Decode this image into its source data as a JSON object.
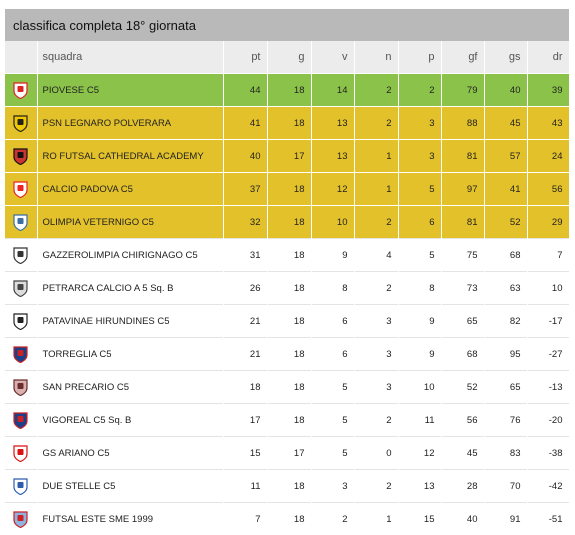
{
  "header": {
    "title": "classifica completa 18° giornata"
  },
  "columns": {
    "squadra": "squadra",
    "pt": "pt",
    "g": "g",
    "v": "v",
    "n": "n",
    "p": "p",
    "gf": "gf",
    "gs": "gs",
    "dr": "dr"
  },
  "rows": [
    {
      "team": "PIOVESE C5",
      "pt": "44",
      "g": "18",
      "v": "14",
      "n": "2",
      "p": "2",
      "gf": "79",
      "gs": "40",
      "dr": "39",
      "highlight": "green",
      "logo_icon": "piovese-crest-icon",
      "logo_colors": [
        "#d22",
        "#ffffff"
      ]
    },
    {
      "team": "PSN LEGNARO POLVERARA",
      "pt": "41",
      "g": "18",
      "v": "13",
      "n": "2",
      "p": "3",
      "gf": "88",
      "gs": "45",
      "dr": "43",
      "highlight": "yellow",
      "logo_icon": "psn-legnaro-crest-icon",
      "logo_colors": [
        "#222",
        "#f0c800"
      ]
    },
    {
      "team": "RO FUTSAL CATHEDRAL ACADEMY",
      "pt": "40",
      "g": "17",
      "v": "13",
      "n": "1",
      "p": "3",
      "gf": "81",
      "gs": "57",
      "dr": "24",
      "highlight": "yellow",
      "logo_icon": "ro-futsal-crest-icon",
      "logo_colors": [
        "#111",
        "#c33"
      ]
    },
    {
      "team": "CALCIO PADOVA C5",
      "pt": "37",
      "g": "18",
      "v": "12",
      "n": "1",
      "p": "5",
      "gf": "97",
      "gs": "41",
      "dr": "56",
      "highlight": "yellow",
      "logo_icon": "calcio-padova-crest-icon",
      "logo_colors": [
        "#e22",
        "#ffffff"
      ]
    },
    {
      "team": "OLIMPIA VETERNIGO C5",
      "pt": "32",
      "g": "18",
      "v": "10",
      "n": "2",
      "p": "6",
      "gf": "81",
      "gs": "52",
      "dr": "29",
      "highlight": "yellow",
      "logo_icon": "olimpia-veternigo-crest-icon",
      "logo_colors": [
        "#3a6ea5",
        "#ffffff"
      ]
    },
    {
      "team": "GAZZEROLIMPIA CHIRIGNAGO C5",
      "pt": "31",
      "g": "18",
      "v": "9",
      "n": "4",
      "p": "5",
      "gf": "75",
      "gs": "68",
      "dr": "7",
      "highlight": "white",
      "logo_icon": "gazzerolimpia-crest-icon",
      "logo_colors": [
        "#333",
        "#ffffff"
      ]
    },
    {
      "team": "PETRARCA CALCIO A 5 Sq. B",
      "pt": "26",
      "g": "18",
      "v": "8",
      "n": "2",
      "p": "8",
      "gf": "73",
      "gs": "63",
      "dr": "10",
      "highlight": "white",
      "logo_icon": "petrarca-crest-icon",
      "logo_colors": [
        "#444",
        "#dddddd"
      ]
    },
    {
      "team": "PATAVINAE HIRUNDINES C5",
      "pt": "21",
      "g": "18",
      "v": "6",
      "n": "3",
      "p": "9",
      "gf": "65",
      "gs": "82",
      "dr": "-17",
      "highlight": "white",
      "logo_icon": "patavinae-swallow-icon",
      "logo_colors": [
        "#222",
        "#ffffff"
      ]
    },
    {
      "team": "TORREGLIA C5",
      "pt": "21",
      "g": "18",
      "v": "6",
      "n": "3",
      "p": "9",
      "gf": "68",
      "gs": "95",
      "dr": "-27",
      "highlight": "white",
      "logo_icon": "torreglia-crest-icon",
      "logo_colors": [
        "#c22",
        "#1c3f8a"
      ]
    },
    {
      "team": "SAN PRECARIO C5",
      "pt": "18",
      "g": "18",
      "v": "5",
      "n": "3",
      "p": "10",
      "gf": "52",
      "gs": "65",
      "dr": "-13",
      "highlight": "white",
      "logo_icon": "san-precario-crest-icon",
      "logo_colors": [
        "#6a2c2c",
        "#d9b0b0"
      ]
    },
    {
      "team": "VIGOREAL C5 Sq. B",
      "pt": "17",
      "g": "18",
      "v": "5",
      "n": "2",
      "p": "11",
      "gf": "56",
      "gs": "76",
      "dr": "-20",
      "highlight": "white",
      "logo_icon": "vigoreal-crest-icon",
      "logo_colors": [
        "#c22",
        "#1c3f8a"
      ]
    },
    {
      "team": "GS ARIANO C5",
      "pt": "15",
      "g": "17",
      "v": "5",
      "n": "0",
      "p": "12",
      "gf": "45",
      "gs": "83",
      "dr": "-38",
      "highlight": "white",
      "logo_icon": "gs-ariano-crest-icon",
      "logo_colors": [
        "#d11",
        "#ffffff"
      ]
    },
    {
      "team": "DUE STELLE C5",
      "pt": "11",
      "g": "18",
      "v": "3",
      "n": "2",
      "p": "13",
      "gf": "28",
      "gs": "70",
      "dr": "-42",
      "highlight": "white",
      "logo_icon": "due-stelle-crest-icon",
      "logo_colors": [
        "#2a5db0",
        "#ffffff"
      ]
    },
    {
      "team": "FUTSAL ESTE SME 1999",
      "pt": "7",
      "g": "18",
      "v": "2",
      "n": "1",
      "p": "15",
      "gf": "40",
      "gs": "91",
      "dr": "-51",
      "highlight": "white",
      "logo_icon": "futsal-este-crest-icon",
      "logo_colors": [
        "#c22",
        "#8fb3e0"
      ]
    }
  ]
}
